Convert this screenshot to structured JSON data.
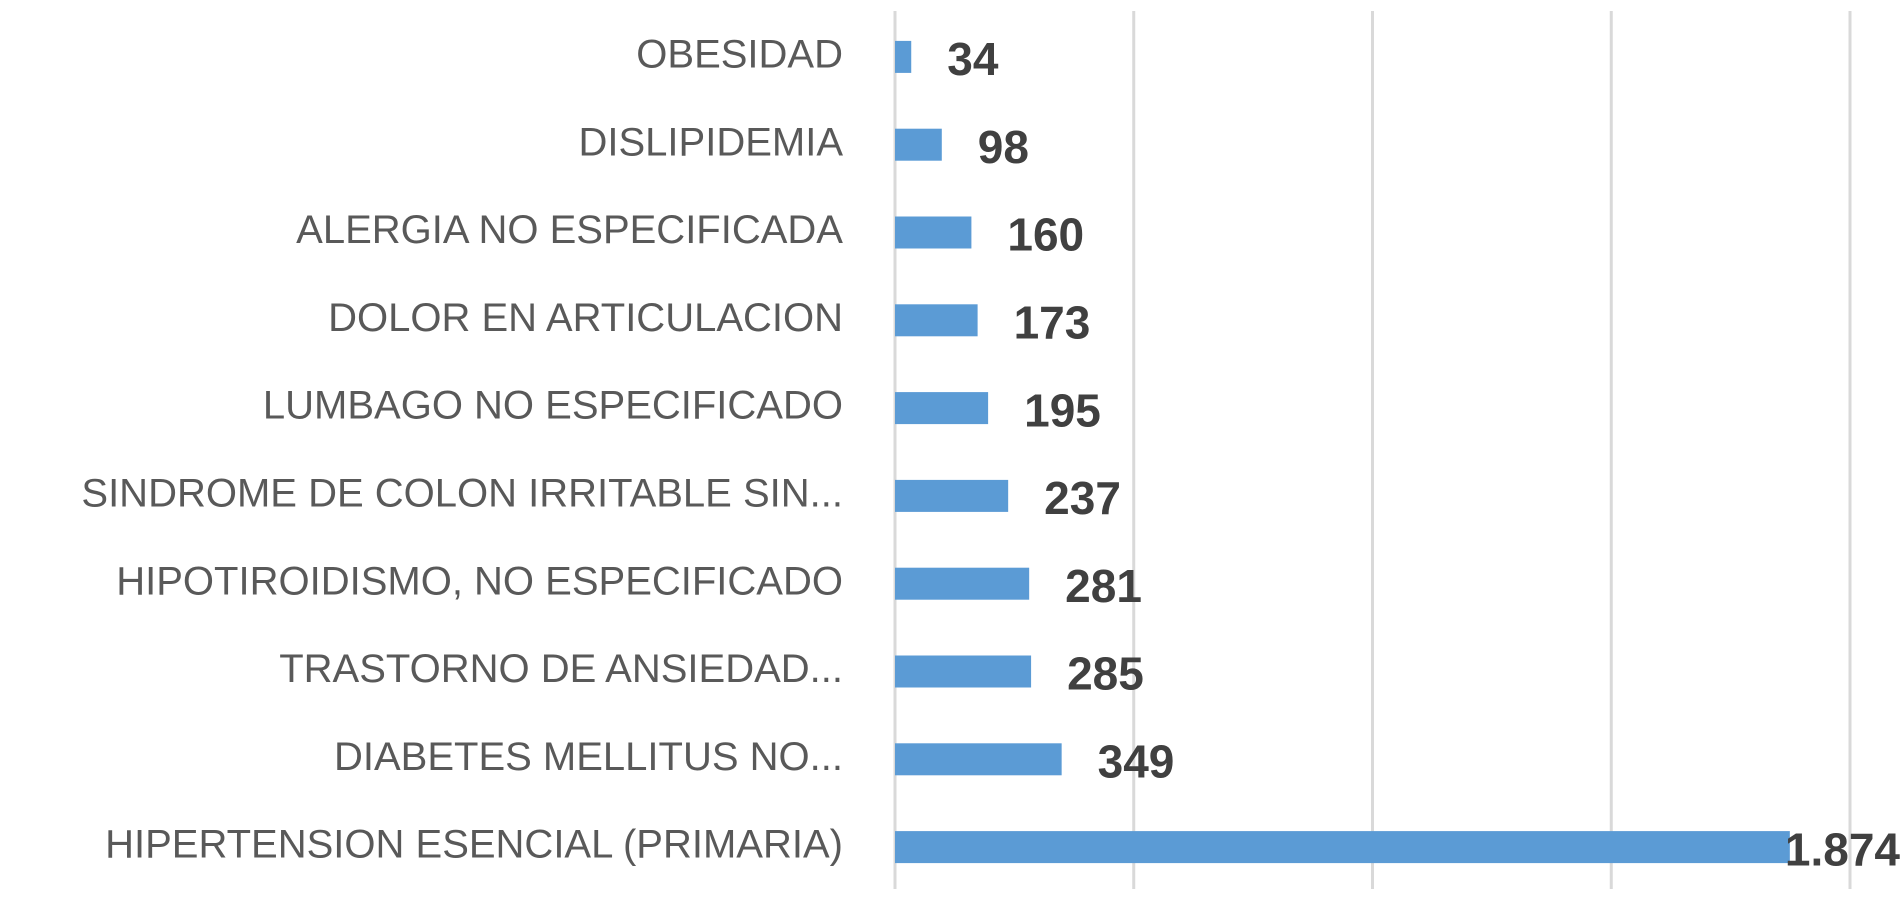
{
  "chart_data": {
    "type": "hbar",
    "categories": [
      "OBESIDAD",
      "DISLIPIDEMIA",
      "ALERGIA NO ESPECIFICADA",
      "DOLOR EN ARTICULACION",
      "LUMBAGO NO ESPECIFICADO",
      "SINDROME DE COLON IRRITABLE SIN...",
      "HIPOTIROIDISMO, NO ESPECIFICADO",
      "TRASTORNO DE ANSIEDAD...",
      "DIABETES MELLITUS NO...",
      "HIPERTENSION ESENCIAL (PRIMARIA)"
    ],
    "values": [
      34,
      98,
      160,
      173,
      195,
      237,
      281,
      285,
      349,
      1874
    ],
    "value_labels": [
      "34",
      "98",
      "160",
      "173",
      "195",
      "237",
      "281",
      "285",
      "349",
      "1.874"
    ],
    "color": "#5b9bd5",
    "xlim": [
      0,
      2000
    ],
    "xticks": [
      0,
      500,
      1000,
      1500,
      2000
    ],
    "grid": true
  }
}
